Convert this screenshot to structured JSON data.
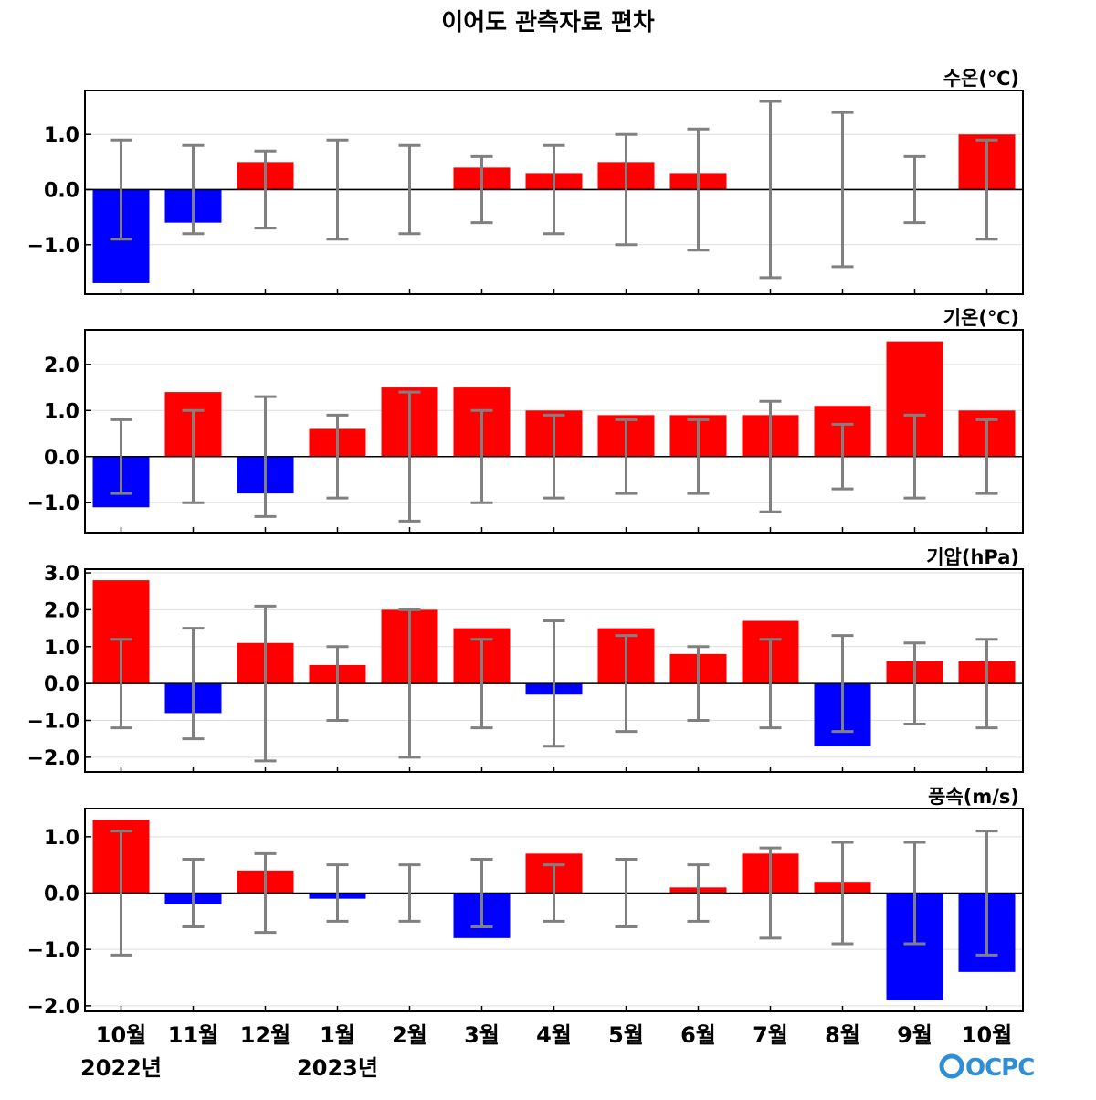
{
  "title": "이어도 관측자료 편차",
  "logo_text": "OCPC",
  "colors": {
    "positive": "#ff0000",
    "negative": "#0000ff",
    "errorbar": "#808080",
    "grid": "#dddddd",
    "zero_line": "#000000",
    "logo": "#2f8fd6"
  },
  "chart_data": [
    {
      "type": "bar",
      "title": "수온(℃)",
      "categories": [
        "10월",
        "11월",
        "12월",
        "1월",
        "2월",
        "3월",
        "4월",
        "5월",
        "6월",
        "7월",
        "8월",
        "9월",
        "10월"
      ],
      "values": [
        -1.7,
        -0.6,
        0.5,
        0.0,
        0.0,
        0.4,
        0.3,
        0.5,
        0.3,
        0.0,
        0.0,
        0.0,
        1.0
      ],
      "error_range": [
        0.9,
        0.8,
        0.7,
        0.9,
        0.8,
        0.6,
        0.8,
        1.0,
        1.1,
        1.6,
        1.4,
        0.6,
        0.9
      ],
      "ylim": [
        -1.9,
        1.8
      ],
      "yticks": [
        -1.0,
        0.0,
        1.0
      ],
      "ytick_labels": [
        "−1.0",
        "0.0",
        "1.0"
      ],
      "grid": true
    },
    {
      "type": "bar",
      "title": "기온(℃)",
      "categories": [
        "10월",
        "11월",
        "12월",
        "1월",
        "2월",
        "3월",
        "4월",
        "5월",
        "6월",
        "7월",
        "8월",
        "9월",
        "10월"
      ],
      "values": [
        -1.1,
        1.4,
        -0.8,
        0.6,
        1.5,
        1.5,
        1.0,
        0.9,
        0.9,
        0.9,
        1.1,
        2.5,
        1.0
      ],
      "error_range": [
        0.8,
        1.0,
        1.3,
        0.9,
        1.4,
        1.0,
        0.9,
        0.8,
        0.8,
        1.2,
        0.7,
        0.9,
        0.8
      ],
      "ylim": [
        -1.65,
        2.75
      ],
      "yticks": [
        -1.0,
        0.0,
        1.0,
        2.0
      ],
      "ytick_labels": [
        "−1.0",
        "0.0",
        "1.0",
        "2.0"
      ],
      "grid": true
    },
    {
      "type": "bar",
      "title": "기압(hPa)",
      "categories": [
        "10월",
        "11월",
        "12월",
        "1월",
        "2월",
        "3월",
        "4월",
        "5월",
        "6월",
        "7월",
        "8월",
        "9월",
        "10월"
      ],
      "values": [
        2.8,
        -0.8,
        1.1,
        0.5,
        2.0,
        1.5,
        -0.3,
        1.5,
        0.8,
        1.7,
        -1.7,
        0.6,
        0.6
      ],
      "error_range": [
        1.2,
        1.5,
        2.1,
        1.0,
        2.0,
        1.2,
        1.7,
        1.3,
        1.0,
        1.2,
        1.3,
        1.1,
        1.2
      ],
      "ylim": [
        -2.4,
        3.1
      ],
      "yticks": [
        -2.0,
        -1.0,
        0.0,
        1.0,
        2.0,
        3.0
      ],
      "ytick_labels": [
        "−2.0",
        "−1.0",
        "0.0",
        "1.0",
        "2.0",
        "3.0"
      ],
      "grid": true
    },
    {
      "type": "bar",
      "title": "풍속(m/s)",
      "categories": [
        "10월",
        "11월",
        "12월",
        "1월",
        "2월",
        "3월",
        "4월",
        "5월",
        "6월",
        "7월",
        "8월",
        "9월",
        "10월"
      ],
      "values": [
        1.3,
        -0.2,
        0.4,
        -0.1,
        0.0,
        -0.8,
        0.7,
        0.0,
        0.1,
        0.7,
        0.2,
        -1.9,
        -1.4
      ],
      "error_range": [
        1.1,
        0.6,
        0.7,
        0.5,
        0.5,
        0.6,
        0.5,
        0.6,
        0.5,
        0.8,
        0.9,
        0.9,
        1.1
      ],
      "ylim": [
        -2.1,
        1.5
      ],
      "yticks": [
        -2.0,
        -1.0,
        0.0,
        1.0
      ],
      "ytick_labels": [
        "−2.0",
        "−1.0",
        "0.0",
        "1.0"
      ],
      "grid": true
    }
  ],
  "x_axis": {
    "tick_labels": [
      "10월",
      "11월",
      "12월",
      "1월",
      "2월",
      "3월",
      "4월",
      "5월",
      "6월",
      "7월",
      "8월",
      "9월",
      "10월"
    ],
    "year_labels": [
      "2022년",
      "2023년"
    ]
  }
}
